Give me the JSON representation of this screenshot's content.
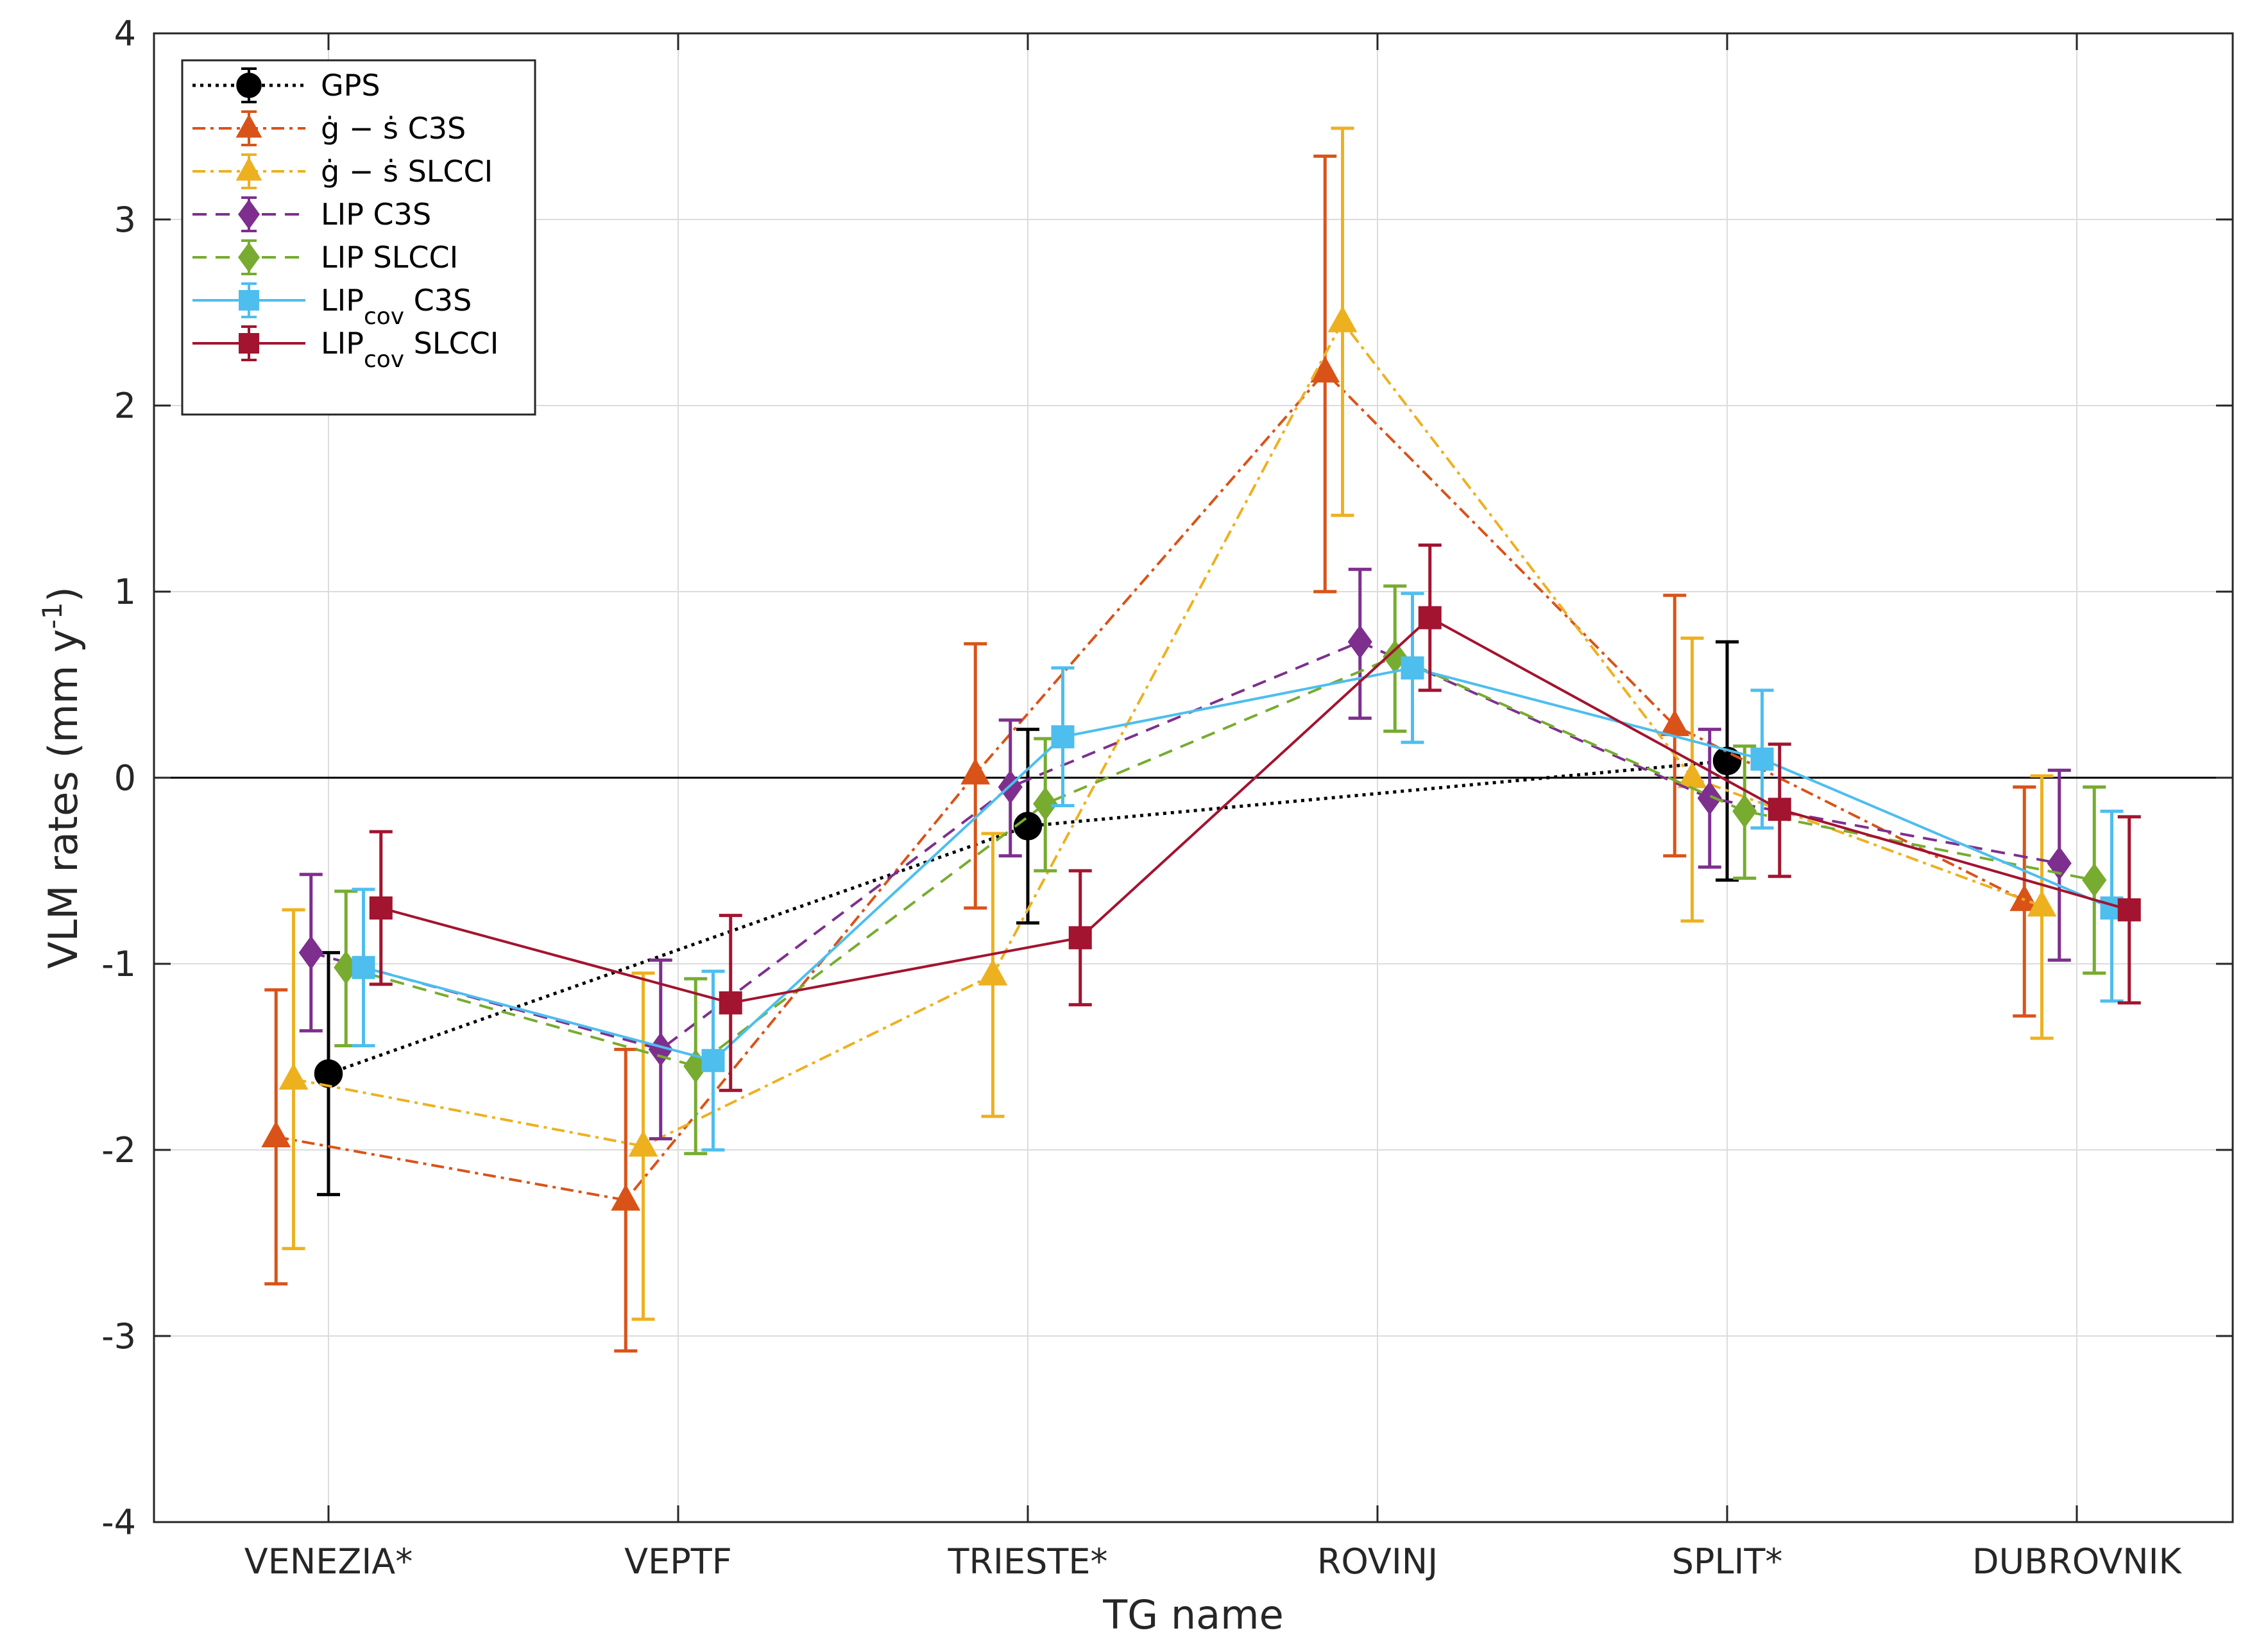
{
  "chart_data": {
    "type": "line",
    "title": "",
    "xlabel": "TG name",
    "ylabel": "VLM rates (mm y",
    "ylabel_sup": "-1",
    "ylabel_close": ")",
    "ylim": [
      -4,
      4
    ],
    "yticks": [
      "-4",
      "-3",
      "-2",
      "-1",
      "0",
      "1",
      "2",
      "3",
      "4"
    ],
    "grid": true,
    "zero_line": true,
    "legend_position": "top-left",
    "categories": [
      "VENEZIA*",
      "VEPTF",
      "TRIESTE*",
      "ROVINJ",
      "SPLIT*",
      "DUBROVNIK"
    ],
    "series": [
      {
        "name": "GPS",
        "label_main": "GPS",
        "label_sub": "",
        "label_tail": "",
        "color": "#000000",
        "style": "dotted",
        "marker": "circle",
        "offset": 0.0,
        "values": [
          -1.59,
          null,
          -0.26,
          null,
          0.09,
          null
        ],
        "err_low": [
          -2.24,
          null,
          -0.78,
          null,
          -0.55,
          null
        ],
        "err_high": [
          -0.94,
          null,
          0.26,
          null,
          0.73,
          null
        ]
      },
      {
        "name": "ġ − ṡ C3S",
        "label_main": "ġ − ṡ  C3S",
        "label_sub": "",
        "label_tail": "",
        "color": "#D95319",
        "style": "dashdot",
        "marker": "triangle",
        "offset": -0.15,
        "values": [
          -1.93,
          -2.27,
          0.02,
          2.18,
          0.28,
          -0.66
        ],
        "err_low": [
          -2.72,
          -3.08,
          -0.7,
          1.0,
          -0.42,
          -1.28
        ],
        "err_high": [
          -1.14,
          -1.46,
          0.72,
          3.34,
          0.98,
          -0.05
        ]
      },
      {
        "name": "ġ − ṡ SLCCI",
        "label_main": "ġ − ṡ  SLCCI",
        "label_sub": "",
        "label_tail": "",
        "color": "#EDB120",
        "style": "dashdot",
        "marker": "triangle",
        "offset": -0.1,
        "values": [
          -1.62,
          -1.98,
          -1.06,
          2.45,
          0.0,
          -0.69
        ],
        "err_low": [
          -2.53,
          -2.91,
          -1.82,
          1.41,
          -0.77,
          -1.4
        ],
        "err_high": [
          -0.71,
          -1.05,
          -0.3,
          3.49,
          0.75,
          0.01
        ]
      },
      {
        "name": "LIP C3S",
        "label_main": "LIP C3S",
        "label_sub": "",
        "label_tail": "",
        "color": "#7E2F8E",
        "style": "dashed",
        "marker": "diamond",
        "offset": -0.05,
        "values": [
          -0.94,
          -1.46,
          -0.05,
          0.73,
          -0.11,
          -0.46
        ],
        "err_low": [
          -1.36,
          -1.94,
          -0.42,
          0.32,
          -0.48,
          -0.98
        ],
        "err_high": [
          -0.52,
          -0.98,
          0.31,
          1.12,
          0.26,
          0.04
        ]
      },
      {
        "name": "LIP SLCCI",
        "label_main": "LIP SLCCI",
        "label_sub": "",
        "label_tail": "",
        "color": "#77AC30",
        "style": "dashed",
        "marker": "diamond",
        "offset": 0.05,
        "values": [
          -1.02,
          -1.55,
          -0.14,
          0.65,
          -0.18,
          -0.55
        ],
        "err_low": [
          -1.44,
          -2.02,
          -0.5,
          0.25,
          -0.54,
          -1.05
        ],
        "err_high": [
          -0.61,
          -1.08,
          0.21,
          1.03,
          0.17,
          -0.05
        ]
      },
      {
        "name": "LIPcov C3S",
        "label_main": "LIP",
        "label_sub": "cov",
        "label_tail": " C3S",
        "color": "#4DBEEE",
        "style": "solid",
        "marker": "square",
        "offset": 0.1,
        "values": [
          -1.02,
          -1.52,
          0.22,
          0.59,
          0.1,
          -0.7
        ],
        "err_low": [
          -1.44,
          -2.0,
          -0.15,
          0.19,
          -0.27,
          -1.2
        ],
        "err_high": [
          -0.6,
          -1.04,
          0.59,
          0.99,
          0.47,
          -0.18
        ]
      },
      {
        "name": "LIPcov SLCCI",
        "label_main": "LIP",
        "label_sub": "cov",
        "label_tail": " SLCCI",
        "color": "#A2142F",
        "style": "solid",
        "marker": "square",
        "offset": 0.15,
        "values": [
          -0.7,
          -1.21,
          -0.86,
          0.86,
          -0.17,
          -0.71
        ],
        "err_low": [
          -1.11,
          -1.68,
          -1.22,
          0.47,
          -0.53,
          -1.21
        ],
        "err_high": [
          -0.29,
          -0.74,
          -0.5,
          1.25,
          0.18,
          -0.21
        ]
      }
    ]
  }
}
